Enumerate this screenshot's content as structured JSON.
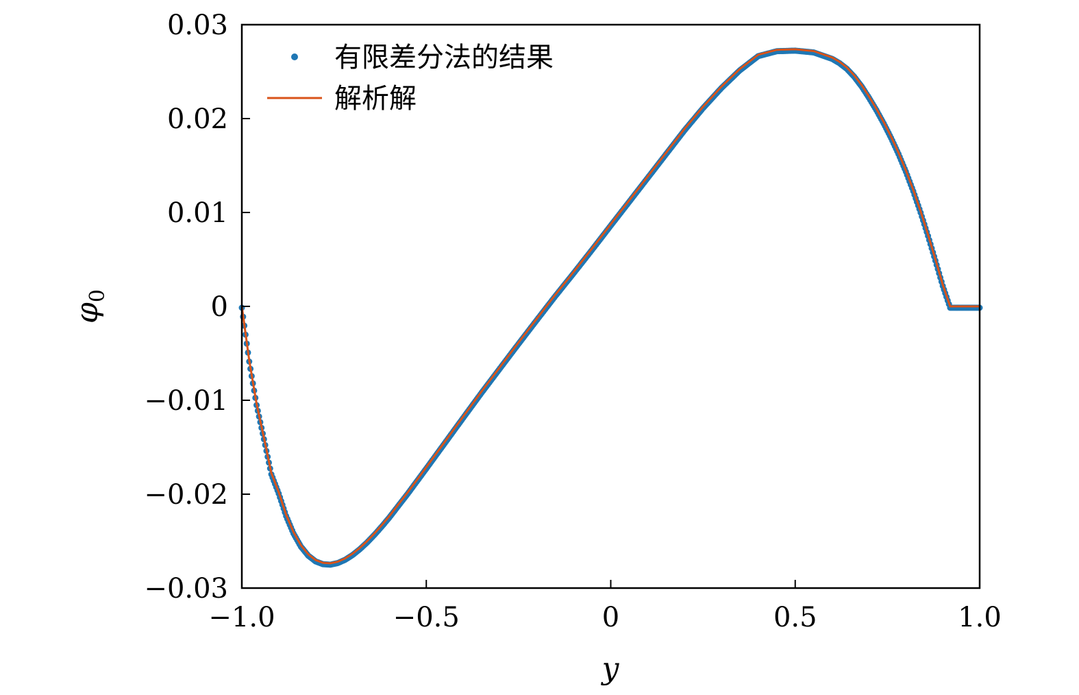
{
  "chart_data": {
    "type": "line",
    "xlabel": "y",
    "ylabel": {
      "symbol": "φ",
      "subscript": "0"
    },
    "xlim": [
      -1.0,
      1.0
    ],
    "ylim": [
      -0.03,
      0.03
    ],
    "x_ticks": [
      -1.0,
      -0.5,
      0,
      0.5,
      1.0
    ],
    "x_tick_labels": [
      "−1.0",
      "−0.5",
      "0",
      "0.5",
      "1.0"
    ],
    "y_ticks": [
      0.03,
      0.02,
      0.01,
      0,
      -0.01,
      -0.02,
      -0.03
    ],
    "y_tick_labels": [
      "0.03",
      "0.02",
      "0.01",
      "0",
      "−0.01",
      "−0.02",
      "−0.03"
    ],
    "grid": false,
    "legend": {
      "placement": "top-left"
    },
    "series": [
      {
        "name": "有限差分法的结果",
        "style": "markers",
        "color": "#1f77b4",
        "x": [
          -1.0,
          -0.98,
          -0.96,
          -0.94,
          -0.92,
          -0.9,
          -0.88,
          -0.86,
          -0.84,
          -0.82,
          -0.8,
          -0.78,
          -0.76,
          -0.74,
          -0.72,
          -0.7,
          -0.68,
          -0.66,
          -0.64,
          -0.62,
          -0.6,
          -0.55,
          -0.5,
          -0.45,
          -0.4,
          -0.35,
          -0.3,
          -0.25,
          -0.2,
          -0.15,
          -0.1,
          -0.05,
          0.0,
          0.05,
          0.1,
          0.15,
          0.2,
          0.25,
          0.3,
          0.35,
          0.4,
          0.45,
          0.5,
          0.55,
          0.6,
          0.62,
          0.64,
          0.66,
          0.68,
          0.7,
          0.72,
          0.74,
          0.76,
          0.78,
          0.8,
          0.82,
          0.84,
          0.86,
          0.88,
          0.9,
          0.92,
          0.94,
          0.96,
          0.98,
          1.0
        ],
        "y": [
          0.0,
          -0.00573,
          -0.01037,
          -0.014,
          -0.01774,
          -0.01979,
          -0.02218,
          -0.02404,
          -0.02543,
          -0.0264,
          -0.02701,
          -0.02731,
          -0.02736,
          -0.02719,
          -0.02684,
          -0.02634,
          -0.02571,
          -0.02498,
          -0.02416,
          -0.02327,
          -0.02233,
          -0.01979,
          -0.01713,
          -0.01443,
          -0.01173,
          -0.00905,
          -0.00645,
          -0.00385,
          -0.00129,
          0.00125,
          0.0037,
          0.0062,
          0.00875,
          0.01128,
          0.01382,
          0.01636,
          0.0189,
          0.02125,
          0.0234,
          0.02529,
          0.0268,
          0.02732,
          0.02738,
          0.02719,
          0.02651,
          0.02605,
          0.02544,
          0.0246,
          0.02357,
          0.02236,
          0.02105,
          0.01962,
          0.01807,
          0.01637,
          0.01449,
          0.01241,
          0.01013,
          0.00765,
          0.00502,
          0.00232,
          0.0,
          -0.0,
          0.0,
          0.0,
          0.0
        ]
      },
      {
        "name": "解析解",
        "style": "line",
        "color": "#d95319"
      }
    ]
  }
}
